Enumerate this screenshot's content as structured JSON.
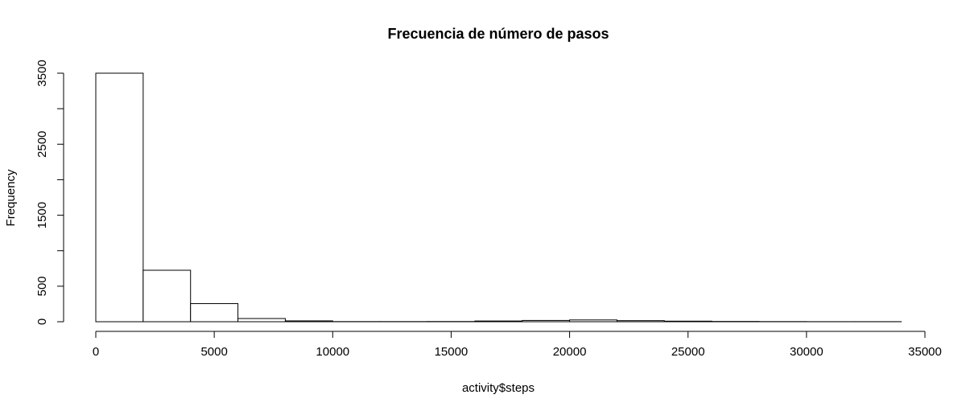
{
  "chart_data": {
    "type": "bar",
    "title": "Frecuencia de número de pasos",
    "xlabel": "activity$steps",
    "ylabel": "Frequency",
    "xlim": [
      0,
      35000
    ],
    "ylim": [
      0,
      3500
    ],
    "x_ticks": [
      "0",
      "5000",
      "10000",
      "15000",
      "20000",
      "25000",
      "30000",
      "35000"
    ],
    "y_ticks": [
      "0",
      "500",
      "1500",
      "2500",
      "3500"
    ],
    "bins": [
      {
        "start": 0,
        "end": 2000,
        "value": 3500
      },
      {
        "start": 2000,
        "end": 4000,
        "value": 725
      },
      {
        "start": 4000,
        "end": 6000,
        "value": 255
      },
      {
        "start": 6000,
        "end": 8000,
        "value": 45
      },
      {
        "start": 8000,
        "end": 10000,
        "value": 12
      },
      {
        "start": 10000,
        "end": 12000,
        "value": 2
      },
      {
        "start": 12000,
        "end": 14000,
        "value": 2
      },
      {
        "start": 14000,
        "end": 16000,
        "value": 3
      },
      {
        "start": 16000,
        "end": 18000,
        "value": 10
      },
      {
        "start": 18000,
        "end": 20000,
        "value": 18
      },
      {
        "start": 20000,
        "end": 22000,
        "value": 25
      },
      {
        "start": 22000,
        "end": 24000,
        "value": 15
      },
      {
        "start": 24000,
        "end": 26000,
        "value": 8
      },
      {
        "start": 26000,
        "end": 28000,
        "value": 4
      },
      {
        "start": 28000,
        "end": 30000,
        "value": 2
      },
      {
        "start": 30000,
        "end": 32000,
        "value": 1
      },
      {
        "start": 32000,
        "end": 34000,
        "value": 1
      }
    ],
    "grid": false,
    "legend": "none"
  }
}
